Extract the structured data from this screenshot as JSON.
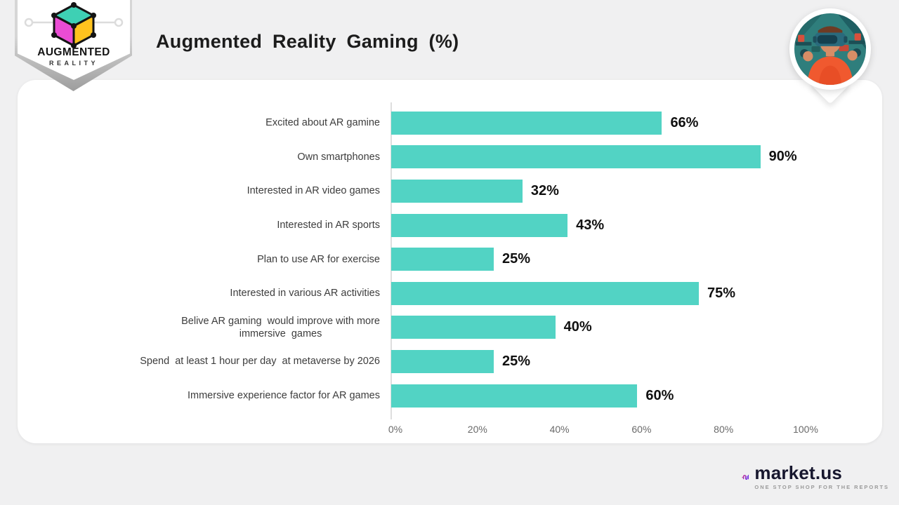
{
  "header": {
    "title": "Augmented Reality Gaming (%)",
    "badge": {
      "line1": "AUGMENTED",
      "line2": "REALITY"
    }
  },
  "chart_data": {
    "type": "bar",
    "orientation": "horizontal",
    "title": "Augmented Reality Gaming (%)",
    "categories": [
      "Excited about AR gamine",
      "Own smartphones",
      "Interested in AR video games",
      "Interested in AR sports",
      "Plan to use AR for exercise",
      "Interested in various AR activities",
      "Belive AR gaming  would improve with more\nimmersive  games",
      "Spend  at least 1 hour per day  at metaverse by 2026",
      "Immersive experience factor for AR games"
    ],
    "values": [
      66,
      90,
      32,
      43,
      25,
      75,
      40,
      25,
      60
    ],
    "value_labels": [
      "66%",
      "90%",
      "32%",
      "43%",
      "25%",
      "75%",
      "40%",
      "25%",
      "60%"
    ],
    "x_ticks": [
      "0%",
      "20%",
      "40%",
      "60%",
      "80%",
      "100%"
    ],
    "xlim": [
      0,
      100
    ],
    "grid": false,
    "legend": null,
    "bar_color": "#52d3c4"
  },
  "footer": {
    "brand": "market.us",
    "tagline": "ONE STOP SHOP FOR THE REPORTS"
  },
  "colors": {
    "background": "#f0f0f1",
    "card": "#ffffff",
    "bar": "#52d3c4",
    "title_text": "#1c1c1c",
    "label_text": "#3d3d3d",
    "value_text": "#111111",
    "tick_text": "#6a6a6a",
    "cube_top": "#3ed0b4",
    "cube_left": "#ea4cd4",
    "cube_right": "#ffc31e",
    "brand_purple": "#7c3aed",
    "brand_magenta": "#c23a9e"
  }
}
